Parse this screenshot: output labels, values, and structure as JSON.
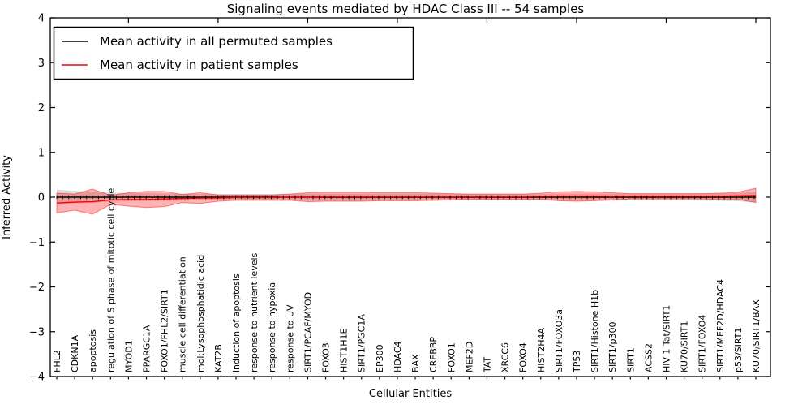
{
  "title": "Signaling events mediated by HDAC Class III -- 54 samples",
  "legend": {
    "items": [
      {
        "label": "Mean activity in all permuted samples",
        "color": "#000000"
      },
      {
        "label": "Mean activity in patient samples",
        "color": "#ff0000"
      }
    ],
    "position": "upper left"
  },
  "chart_data": {
    "type": "line",
    "title": "Signaling events mediated by HDAC Class III -- 54 samples",
    "xlabel": "Cellular Entities",
    "ylabel": "Inferred Activity",
    "ylim": [
      -4,
      4
    ],
    "yticks": [
      4,
      3,
      2,
      1,
      0,
      -1,
      -2,
      -3,
      -4
    ],
    "grid": false,
    "legend_position": "upper left",
    "categories": [
      "FHL2",
      "CDKN1A",
      "apoptosis",
      "regulation of S phase of mitotic cell cycle",
      "MYOD1",
      "PPARGC1A",
      "FOXO1/FHL2/SIRT1",
      "muscle cell differentiation",
      "mol:Lysophosphatidic acid",
      "KAT2B",
      "induction of apoptosis",
      "response to nutrient levels",
      "response to hypoxia",
      "response to UV",
      "SIRT1/PCAF/MYOD",
      "FOXO3",
      "HIST1H1E",
      "SIRT1/PGC1A",
      "EP300",
      "HDAC4",
      "BAX",
      "CREBBP",
      "FOXO1",
      "MEF2D",
      "TAT",
      "XRCC6",
      "FOXO4",
      "HIST2H4A",
      "SIRT1/FOXO3a",
      "TP53",
      "SIRT1/Histone H1b",
      "SIRT1/p300",
      "SIRT1",
      "ACSS2",
      "HIV-1 Tat/SIRT1",
      "KU70/SIRT1",
      "SIRT1/FOXO4",
      "SIRT1/MEF2D/HDAC4",
      "p53/SIRT1",
      "KU70/SIRT1/BAX"
    ],
    "series": [
      {
        "name": "Mean activity in all permuted samples",
        "color": "#000000",
        "band_color": "rgba(110,110,110,0.25)",
        "values": [
          0,
          0,
          0,
          0,
          0,
          0,
          0,
          0,
          0,
          0,
          0,
          0,
          0,
          0,
          0,
          0,
          0,
          0,
          0,
          0,
          0,
          0,
          0,
          0,
          0,
          0,
          0,
          0,
          0,
          0,
          0,
          0,
          0,
          0,
          0,
          0,
          0,
          0,
          0,
          0
        ],
        "band": [
          0.17,
          0.14,
          0.12,
          0.1,
          0.09,
          0.09,
          0.08,
          0.08,
          0.07,
          0.07,
          0.07,
          0.07,
          0.07,
          0.07,
          0.08,
          0.08,
          0.08,
          0.08,
          0.08,
          0.08,
          0.08,
          0.08,
          0.07,
          0.07,
          0.07,
          0.07,
          0.07,
          0.07,
          0.08,
          0.08,
          0.08,
          0.08,
          0.07,
          0.07,
          0.07,
          0.07,
          0.08,
          0.08,
          0.09,
          0.12
        ]
      },
      {
        "name": "Mean activity in patient samples",
        "color": "#ff0000",
        "band_color": "rgba(255,0,0,0.30)",
        "values": [
          -0.13,
          -0.11,
          -0.1,
          -0.06,
          -0.05,
          -0.05,
          -0.04,
          -0.03,
          -0.02,
          -0.02,
          -0.01,
          -0.01,
          -0.01,
          0.0,
          0.0,
          0.01,
          0.01,
          0.01,
          0.01,
          0.01,
          0.01,
          0.01,
          0.01,
          0.01,
          0.01,
          0.01,
          0.01,
          0.02,
          0.02,
          0.02,
          0.02,
          0.02,
          0.02,
          0.02,
          0.02,
          0.02,
          0.02,
          0.02,
          0.03,
          0.04
        ],
        "band": [
          0.22,
          0.18,
          0.28,
          0.1,
          0.15,
          0.18,
          0.17,
          0.09,
          0.12,
          0.07,
          0.06,
          0.06,
          0.06,
          0.07,
          0.1,
          0.1,
          0.1,
          0.1,
          0.09,
          0.09,
          0.09,
          0.08,
          0.07,
          0.06,
          0.06,
          0.06,
          0.06,
          0.07,
          0.1,
          0.11,
          0.1,
          0.08,
          0.06,
          0.06,
          0.06,
          0.06,
          0.06,
          0.07,
          0.08,
          0.16
        ]
      }
    ]
  }
}
